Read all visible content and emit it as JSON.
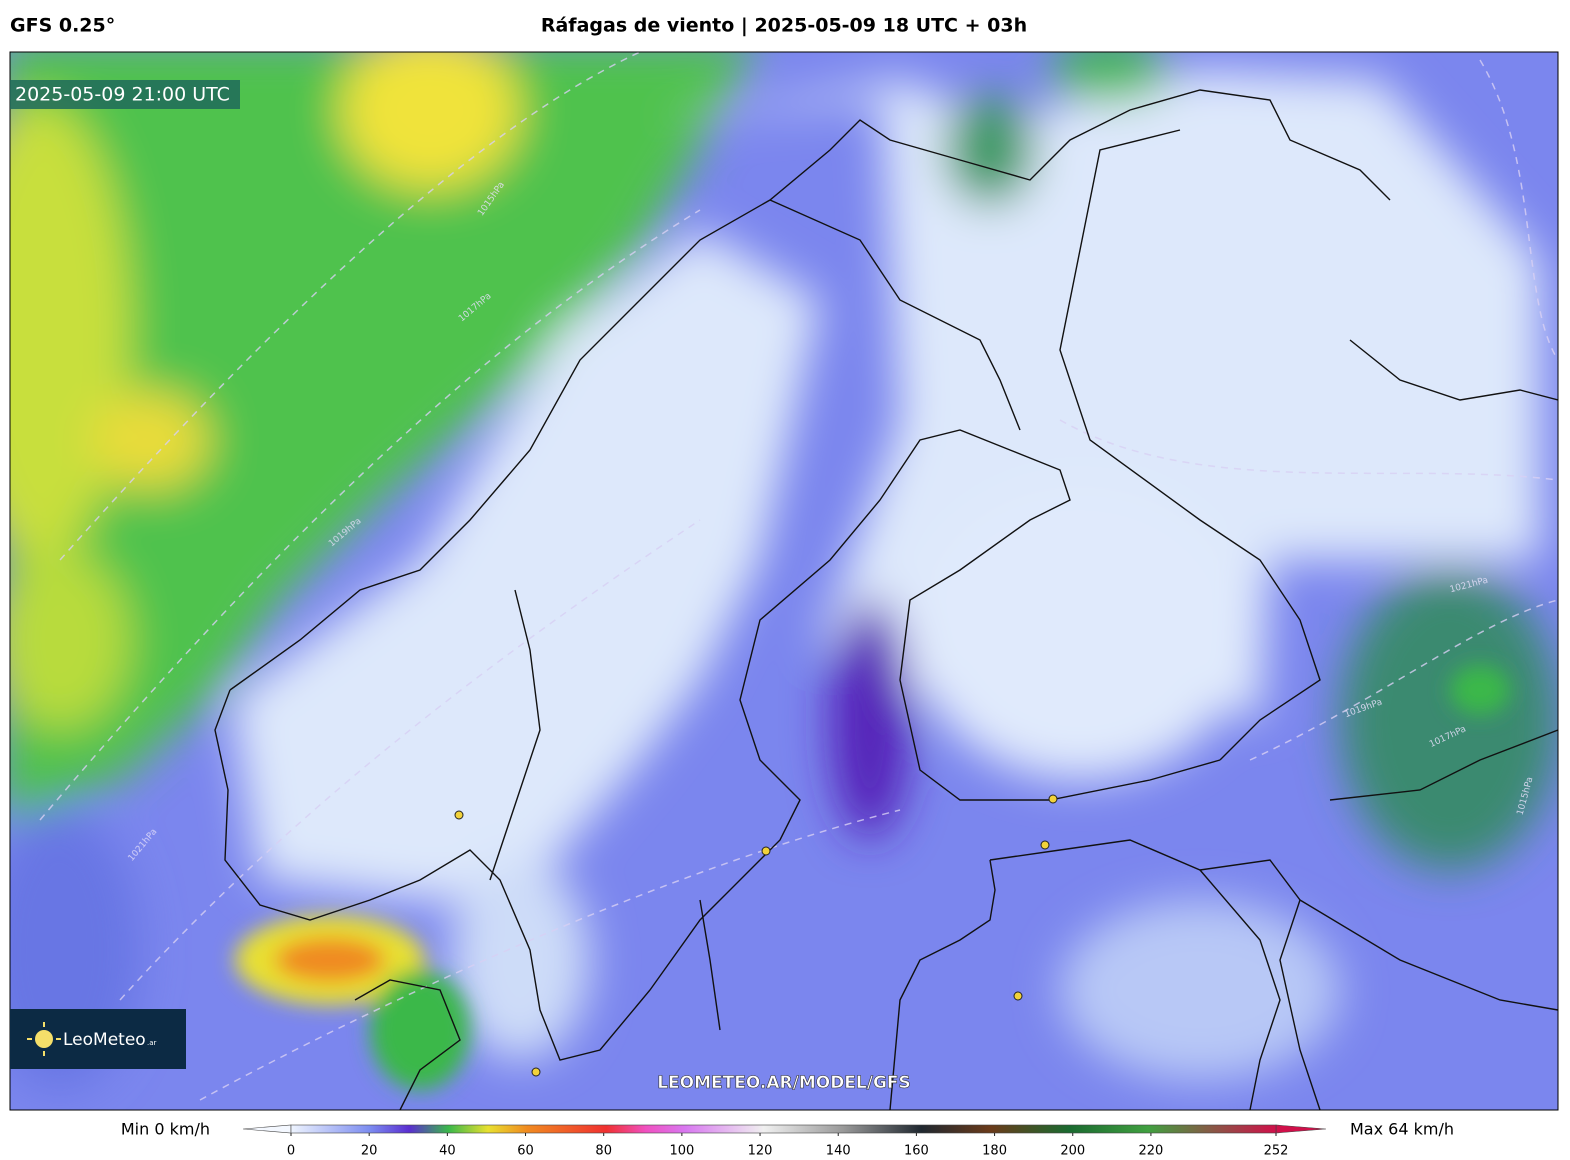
{
  "header": {
    "model": "GFS 0.25°",
    "title": "Ráfagas de viento | 2025-05-09 18 UTC + 03h"
  },
  "map": {
    "timestamp": "2025-05-09 21:00 UTC",
    "watermark": "LEOMETEO.AR/MODEL/GFS",
    "logo": {
      "name": "LeoMeteo",
      "suffix": ".ar"
    },
    "isobar_labels": [
      "1015hPa",
      "1017hPa",
      "1019hPa",
      "1021hPa",
      "1021hPa",
      "1019hPa",
      "1017hPa",
      "1015hPa"
    ]
  },
  "legend": {
    "min_label": "Min 0 km/h",
    "max_label": "Max 64 km/h",
    "ticks": [
      0,
      20,
      40,
      60,
      80,
      100,
      120,
      140,
      160,
      180,
      200,
      220,
      252
    ]
  }
}
